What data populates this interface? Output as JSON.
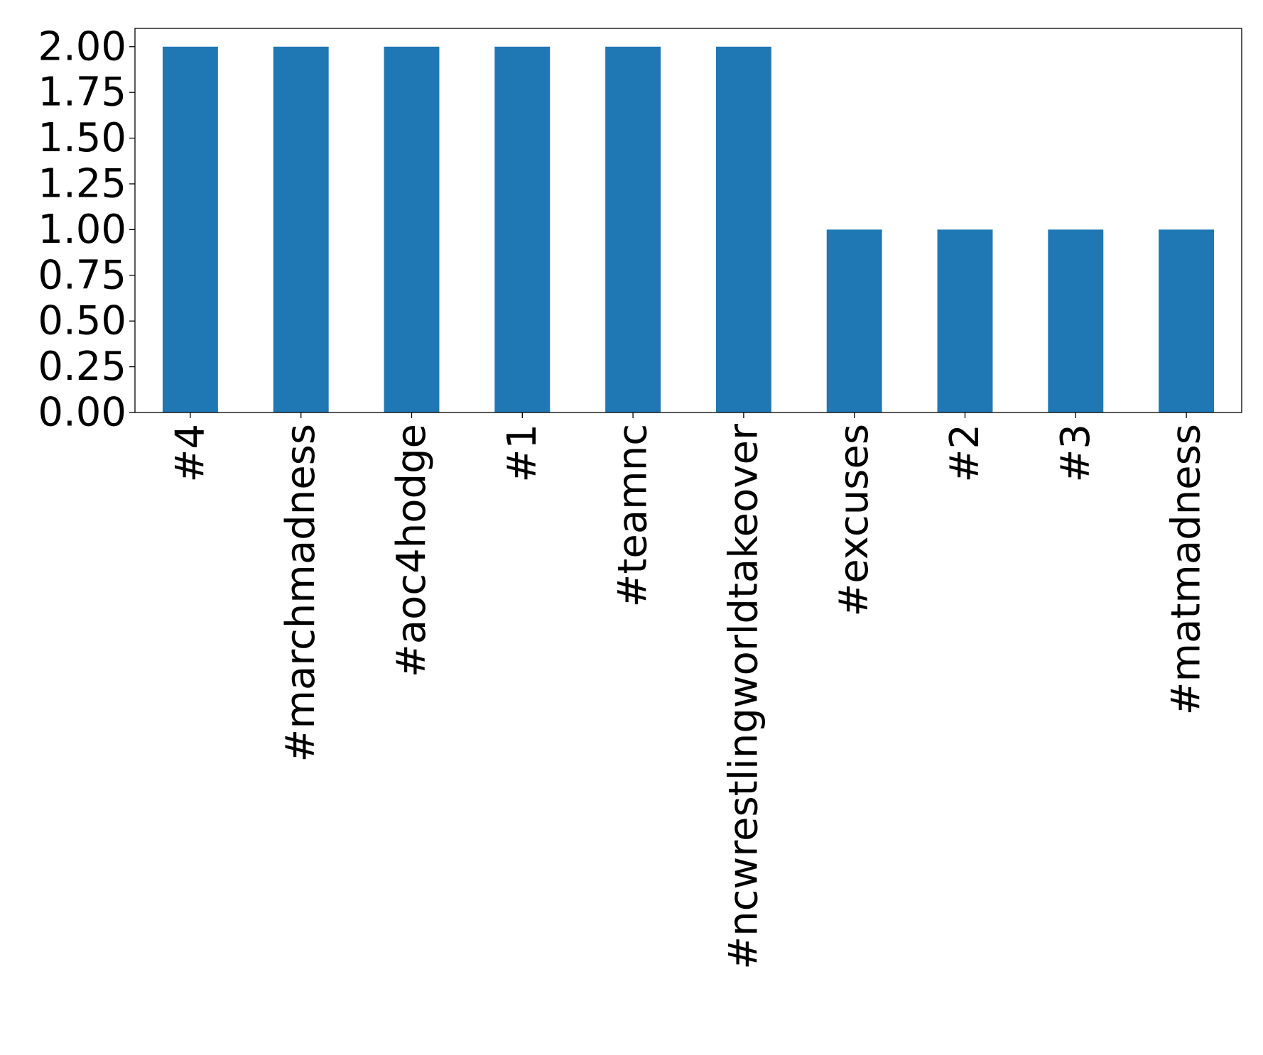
{
  "chart_data": {
    "type": "bar",
    "categories": [
      "#4",
      "#marchmadness",
      "#aoc4hodge",
      "#1",
      "#teamnc",
      "#ncwrestlingworldtakeover",
      "#excuses",
      "#2",
      "#3",
      "#matmadness"
    ],
    "values": [
      2,
      2,
      2,
      2,
      2,
      2,
      1,
      1,
      1,
      1
    ],
    "ylim": [
      0,
      2.1
    ],
    "yticks": [
      "0.00",
      "0.25",
      "0.50",
      "0.75",
      "1.00",
      "1.25",
      "1.50",
      "1.75",
      "2.00"
    ],
    "title": "",
    "xlabel": "",
    "ylabel": "",
    "bar_color": "#1f77b4",
    "grid": false,
    "legend": "none"
  }
}
